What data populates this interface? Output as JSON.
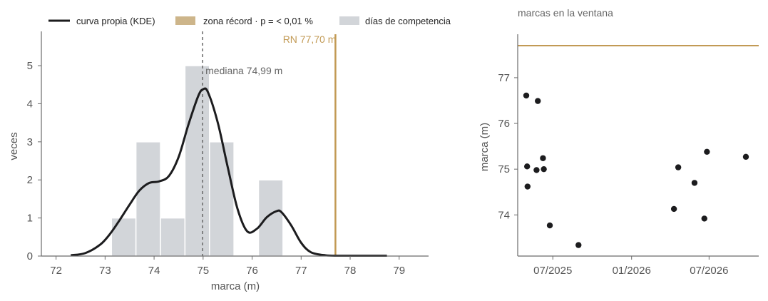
{
  "colors": {
    "curve": "#1c1c1e",
    "record": "#c29a55",
    "record_legend": "#cdb58a",
    "bars": "#d2d5d9",
    "axis": "#6b6b6b",
    "text": "#555555",
    "median": "#666666",
    "points": "#1c1c1e"
  },
  "chart_data": [
    {
      "type": "bar",
      "subtype": "histogram with KDE overlay",
      "legend": {
        "placement": "top, above plots",
        "entries": [
          {
            "label": "curva propia (KDE)",
            "style": "line"
          },
          {
            "label": "zona récord · p = < 0,01 %",
            "style": "patch-record"
          },
          {
            "label": "días de competencia",
            "style": "patch-bars"
          }
        ]
      },
      "xlabel": "marca (m)",
      "ylabel": "veces",
      "xlim": [
        71.7,
        79.6
      ],
      "ylim": [
        0,
        5.9
      ],
      "xticks": [
        72,
        73,
        74,
        75,
        76,
        77,
        78,
        79
      ],
      "yticks": [
        0,
        1,
        2,
        3,
        4,
        5
      ],
      "bins": [
        {
          "x0": 73.13,
          "x1": 73.63,
          "count": 1
        },
        {
          "x0": 73.63,
          "x1": 74.13,
          "count": 3
        },
        {
          "x0": 74.13,
          "x1": 74.63,
          "count": 1
        },
        {
          "x0": 74.63,
          "x1": 75.13,
          "count": 5
        },
        {
          "x0": 75.13,
          "x1": 75.63,
          "count": 3
        },
        {
          "x0": 75.63,
          "x1": 76.13,
          "count": 0
        },
        {
          "x0": 76.13,
          "x1": 76.63,
          "count": 2
        }
      ],
      "kde": {
        "x": [
          72.3,
          72.6,
          72.9,
          73.1,
          73.3,
          73.5,
          73.7,
          73.9,
          74.1,
          74.3,
          74.5,
          74.7,
          74.9,
          75.0,
          75.1,
          75.3,
          75.5,
          75.7,
          75.9,
          76.1,
          76.3,
          76.5,
          76.6,
          76.8,
          77.0,
          77.2,
          77.5,
          77.8,
          78.2,
          78.75
        ],
        "y": [
          0.02,
          0.08,
          0.3,
          0.58,
          0.95,
          1.35,
          1.72,
          1.92,
          1.96,
          2.1,
          2.6,
          3.45,
          4.2,
          4.38,
          4.3,
          3.5,
          2.35,
          1.25,
          0.65,
          0.72,
          1.02,
          1.18,
          1.15,
          0.8,
          0.35,
          0.1,
          0.02,
          0.01,
          0.01,
          0.01
        ]
      },
      "median": {
        "value": 74.99,
        "label": "mediana 74,99 m"
      },
      "record": {
        "value": 77.7,
        "label": "RN 77,70 m"
      }
    },
    {
      "type": "scatter",
      "title": "marcas en la ventana",
      "xlabel": "",
      "ylabel": "marca (m)",
      "x_axis_type": "date",
      "xlim": [
        "2025-04-10",
        "2026-10-25"
      ],
      "ylim": [
        73.1,
        77.95
      ],
      "xticks": [
        {
          "date": "2025-07-01",
          "label": "07/2025"
        },
        {
          "date": "2026-01-01",
          "label": "01/2026"
        },
        {
          "date": "2026-07-01",
          "label": "07/2026"
        }
      ],
      "yticks": [
        74,
        75,
        76,
        77
      ],
      "record_line": 77.7,
      "points": [
        {
          "x": "2025-04-30",
          "y": 76.61
        },
        {
          "x": "2025-05-02",
          "y": 75.06
        },
        {
          "x": "2025-05-03",
          "y": 74.62
        },
        {
          "x": "2025-05-24",
          "y": 74.98
        },
        {
          "x": "2025-05-27",
          "y": 76.49
        },
        {
          "x": "2025-06-08",
          "y": 75.24
        },
        {
          "x": "2025-06-10",
          "y": 75.0
        },
        {
          "x": "2025-06-24",
          "y": 73.77
        },
        {
          "x": "2025-08-30",
          "y": 73.34
        },
        {
          "x": "2026-04-10",
          "y": 74.13
        },
        {
          "x": "2026-04-20",
          "y": 75.04
        },
        {
          "x": "2026-05-28",
          "y": 74.7
        },
        {
          "x": "2026-06-20",
          "y": 73.92
        },
        {
          "x": "2026-06-26",
          "y": 75.38
        },
        {
          "x": "2026-09-25",
          "y": 75.27
        }
      ]
    }
  ]
}
